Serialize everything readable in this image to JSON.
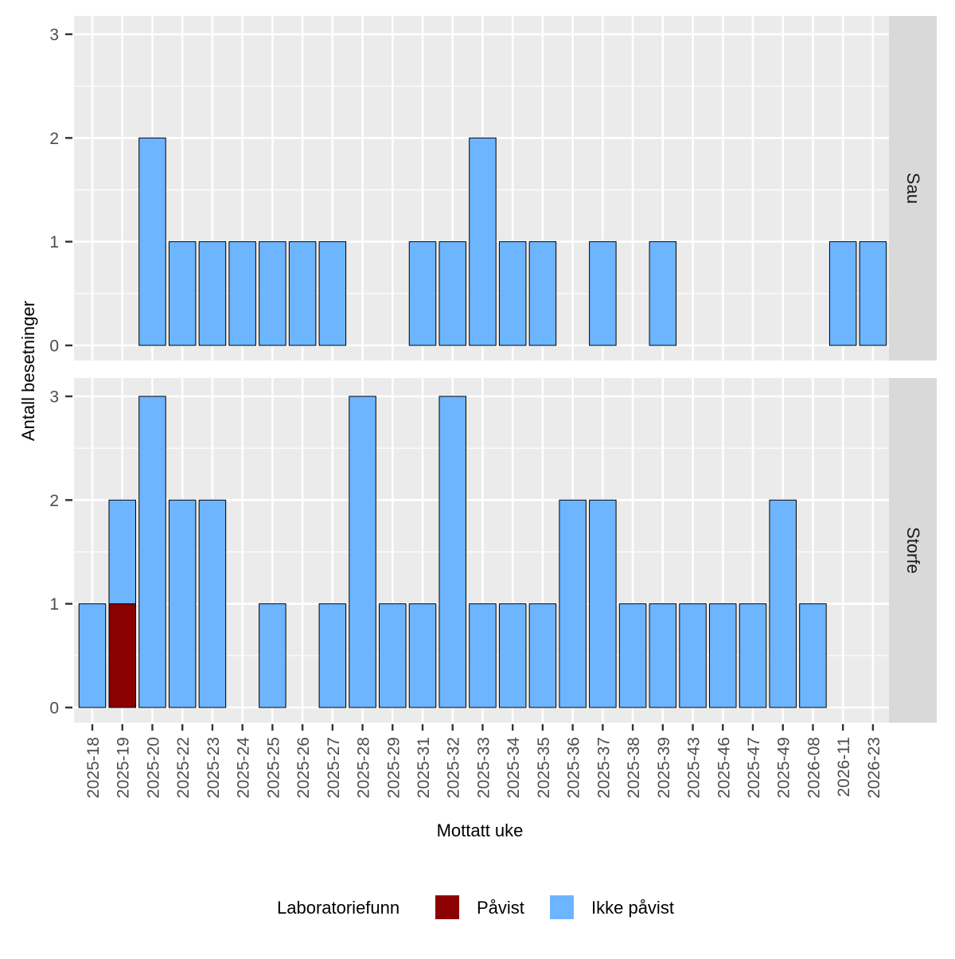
{
  "chart_data": {
    "type": "bar",
    "stacked": true,
    "ylabel": "Antall besetninger",
    "xlabel": "Mottatt uke",
    "ylim": [
      0,
      3
    ],
    "yticks": [
      0,
      1,
      2,
      3
    ],
    "grid": true,
    "legend": {
      "position": "bottom",
      "title": "Laboratoriefunn",
      "entries": [
        {
          "name": "Påvist",
          "color": "#8B0000"
        },
        {
          "name": "Ikke påvist",
          "color": "#6DB5FF"
        }
      ]
    },
    "categories": [
      "2025-18",
      "2025-19",
      "2025-20",
      "2025-22",
      "2025-23",
      "2025-24",
      "2025-25",
      "2025-26",
      "2025-27",
      "2025-28",
      "2025-29",
      "2025-31",
      "2025-32",
      "2025-33",
      "2025-34",
      "2025-35",
      "2025-36",
      "2025-37",
      "2025-38",
      "2025-39",
      "2025-43",
      "2025-46",
      "2025-47",
      "2025-49",
      "2026-08",
      "2026-11",
      "2026-23"
    ],
    "panels": [
      {
        "label": "Sau",
        "series": [
          {
            "name": "Påvist",
            "values": [
              0,
              0,
              0,
              0,
              0,
              0,
              0,
              0,
              0,
              0,
              0,
              0,
              0,
              0,
              0,
              0,
              0,
              0,
              0,
              0,
              0,
              0,
              0,
              0,
              0,
              0,
              0
            ]
          },
          {
            "name": "Ikke påvist",
            "values": [
              0,
              0,
              2,
              1,
              1,
              1,
              1,
              1,
              1,
              0,
              0,
              1,
              1,
              2,
              1,
              1,
              0,
              1,
              0,
              1,
              0,
              0,
              0,
              0,
              0,
              1,
              1
            ]
          }
        ]
      },
      {
        "label": "Storfe",
        "series": [
          {
            "name": "Påvist",
            "values": [
              0,
              1,
              0,
              0,
              0,
              0,
              0,
              0,
              0,
              0,
              0,
              0,
              0,
              0,
              0,
              0,
              0,
              0,
              0,
              0,
              0,
              0,
              0,
              0,
              0,
              0,
              0
            ]
          },
          {
            "name": "Ikke påvist",
            "values": [
              1,
              1,
              3,
              2,
              2,
              0,
              1,
              0,
              1,
              3,
              1,
              1,
              3,
              1,
              1,
              1,
              2,
              2,
              1,
              1,
              1,
              1,
              1,
              2,
              1,
              0,
              0
            ]
          }
        ]
      }
    ]
  }
}
